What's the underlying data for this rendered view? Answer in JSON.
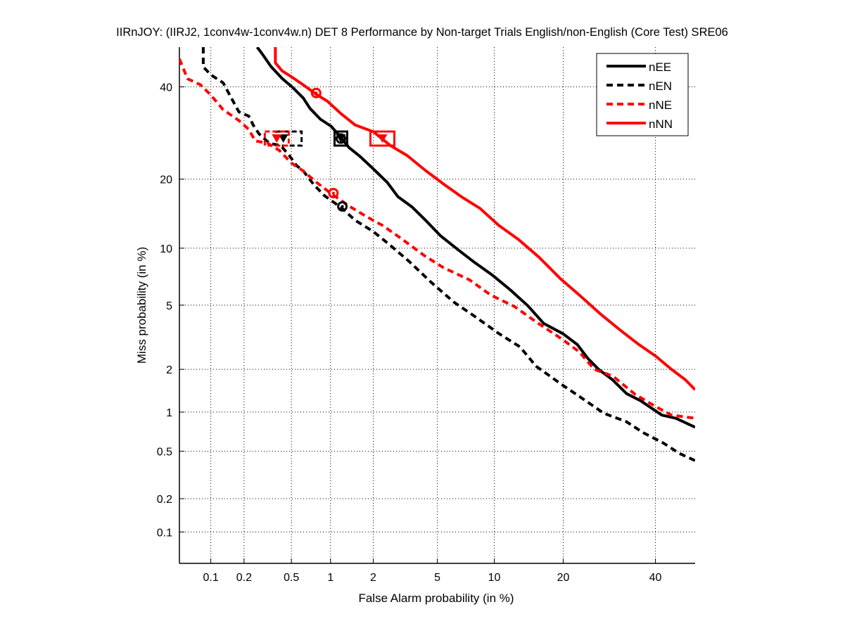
{
  "chart_data": {
    "type": "line",
    "scale": "normal-deviate (DET)",
    "title": "IIRnJOY: (IIRJ2, 1conv4w-1conv4w.n) DET 8 Performance by Non-target Trials English/non-English (Core Test) SRE06",
    "xlabel": "False Alarm probability (in %)",
    "ylabel": "Miss probability (in %)",
    "xlim": [
      0.05,
      50
    ],
    "ylim": [
      0.05,
      50
    ],
    "xticks": [
      0.1,
      0.2,
      0.5,
      1,
      2,
      5,
      10,
      20,
      40
    ],
    "xtick_labels": [
      "0.1",
      "0.2",
      "0.5",
      "1",
      "2",
      "5",
      "10",
      "20",
      "40"
    ],
    "yticks": [
      0.1,
      0.2,
      0.5,
      1,
      2,
      5,
      10,
      20,
      40
    ],
    "ytick_labels": [
      "0.1",
      "0.2",
      "0.5",
      "1",
      "2",
      "5",
      "10",
      "20",
      "40"
    ],
    "grid": true,
    "legend_position": "top-right",
    "series": [
      {
        "name": "nEE",
        "color": "#000000",
        "style": "solid",
        "points": [
          [
            0.26,
            50
          ],
          [
            0.29,
            48.1
          ],
          [
            0.34,
            45.1
          ],
          [
            0.42,
            42.1
          ],
          [
            0.51,
            39.9
          ],
          [
            0.62,
            37.3
          ],
          [
            0.7,
            34.8
          ],
          [
            0.84,
            32.3
          ],
          [
            1.01,
            30.7
          ],
          [
            1.18,
            28.4
          ],
          [
            1.36,
            26.1
          ],
          [
            1.61,
            24.4
          ],
          [
            2.0,
            21.9
          ],
          [
            2.48,
            19.4
          ],
          [
            2.9,
            17.0
          ],
          [
            3.55,
            15.4
          ],
          [
            4.31,
            13.4
          ],
          [
            5.19,
            11.5
          ],
          [
            6.5,
            9.85
          ],
          [
            7.84,
            8.6
          ],
          [
            9.85,
            7.27
          ],
          [
            11.9,
            6.1
          ],
          [
            14.3,
            4.96
          ],
          [
            16.7,
            3.91
          ],
          [
            20.0,
            3.38
          ],
          [
            22.6,
            2.9
          ],
          [
            24.7,
            2.36
          ],
          [
            26.9,
            2.0
          ],
          [
            29.9,
            1.7
          ],
          [
            33.1,
            1.36
          ],
          [
            36.4,
            1.21
          ],
          [
            41.6,
            0.95
          ],
          [
            45.1,
            0.9
          ],
          [
            50,
            0.77
          ]
        ],
        "actual_marker": {
          "fa": 1.19,
          "miss": 28.0
        },
        "min_marker": {
          "fa": 1.19,
          "miss": 28.0
        }
      },
      {
        "name": "nEN",
        "color": "#000000",
        "style": "dashed",
        "points": [
          [
            0.085,
            50
          ],
          [
            0.085,
            45
          ],
          [
            0.1,
            43
          ],
          [
            0.13,
            41
          ],
          [
            0.16,
            36.5
          ],
          [
            0.18,
            34
          ],
          [
            0.22,
            33
          ],
          [
            0.24,
            31
          ],
          [
            0.27,
            29
          ],
          [
            0.33,
            27
          ],
          [
            0.41,
            26.5
          ],
          [
            0.48,
            24.5
          ],
          [
            0.55,
            22.5
          ],
          [
            0.62,
            21.5
          ],
          [
            0.75,
            19
          ],
          [
            0.9,
            17.2
          ],
          [
            1.2,
            15.3
          ],
          [
            1.5,
            13.5
          ],
          [
            2.0,
            12.0
          ],
          [
            2.6,
            10.3
          ],
          [
            3.4,
            8.6
          ],
          [
            4.6,
            6.7
          ],
          [
            6.2,
            5.2
          ],
          [
            8.0,
            4.3
          ],
          [
            10.5,
            3.4
          ],
          [
            13.2,
            2.8
          ],
          [
            15.5,
            2.1
          ],
          [
            20.0,
            1.55
          ],
          [
            23.0,
            1.3
          ],
          [
            28.0,
            0.98
          ],
          [
            33.0,
            0.85
          ],
          [
            37.0,
            0.7
          ],
          [
            42.0,
            0.58
          ],
          [
            46.0,
            0.48
          ],
          [
            50,
            0.42
          ]
        ],
        "actual_marker": {
          "fa": 0.43,
          "miss": 28.0
        },
        "min_marker": {
          "fa": 1.22,
          "miss": 15.5
        }
      },
      {
        "name": "nNE",
        "color": "#ff0000",
        "style": "dashed",
        "points": [
          [
            0.05,
            47
          ],
          [
            0.06,
            42
          ],
          [
            0.08,
            40.5
          ],
          [
            0.1,
            38
          ],
          [
            0.13,
            34.5
          ],
          [
            0.18,
            32
          ],
          [
            0.22,
            30
          ],
          [
            0.25,
            27.5
          ],
          [
            0.32,
            27
          ],
          [
            0.4,
            25.5
          ],
          [
            0.5,
            23
          ],
          [
            0.62,
            21.5
          ],
          [
            0.78,
            19.5
          ],
          [
            1.0,
            17.6
          ],
          [
            1.35,
            15.6
          ],
          [
            1.8,
            14.0
          ],
          [
            2.3,
            12.8
          ],
          [
            3.0,
            11.2
          ],
          [
            4.2,
            9.2
          ],
          [
            5.4,
            8.0
          ],
          [
            7.5,
            6.9
          ],
          [
            9.6,
            5.7
          ],
          [
            12.5,
            4.9
          ],
          [
            15.5,
            4.0
          ],
          [
            20.0,
            3.1
          ],
          [
            23.0,
            2.6
          ],
          [
            26.0,
            2.0
          ],
          [
            30.0,
            1.8
          ],
          [
            35.0,
            1.35
          ],
          [
            40.0,
            1.1
          ],
          [
            44.0,
            0.95
          ],
          [
            50,
            0.9
          ]
        ],
        "actual_marker": {
          "fa": 0.38,
          "miss": 28.0
        },
        "min_marker": {
          "fa": 1.05,
          "miss": 17.6
        }
      },
      {
        "name": "nNN",
        "color": "#ff0000",
        "style": "solid",
        "points": [
          [
            0.37,
            50
          ],
          [
            0.37,
            46
          ],
          [
            0.42,
            44
          ],
          [
            0.5,
            42.5
          ],
          [
            0.62,
            40.5
          ],
          [
            0.78,
            38.2
          ],
          [
            0.95,
            36.5
          ],
          [
            1.2,
            33.5
          ],
          [
            1.5,
            31.0
          ],
          [
            2.0,
            29.5
          ],
          [
            2.6,
            26.5
          ],
          [
            3.3,
            24.5
          ],
          [
            4.3,
            21.5
          ],
          [
            5.5,
            19.0
          ],
          [
            6.8,
            17.0
          ],
          [
            8.5,
            15.2
          ],
          [
            10.5,
            12.8
          ],
          [
            13.0,
            11.0
          ],
          [
            16.0,
            9.0
          ],
          [
            19.5,
            7.0
          ],
          [
            23.0,
            5.7
          ],
          [
            27.5,
            4.4
          ],
          [
            32.0,
            3.5
          ],
          [
            36.0,
            2.9
          ],
          [
            40.0,
            2.45
          ],
          [
            44.0,
            2.0
          ],
          [
            47.5,
            1.7
          ],
          [
            50,
            1.45
          ]
        ],
        "actual_marker": {
          "fa": 2.3,
          "miss": 28.0
        },
        "min_marker": {
          "fa": 0.78,
          "miss": 38.5
        }
      }
    ]
  }
}
